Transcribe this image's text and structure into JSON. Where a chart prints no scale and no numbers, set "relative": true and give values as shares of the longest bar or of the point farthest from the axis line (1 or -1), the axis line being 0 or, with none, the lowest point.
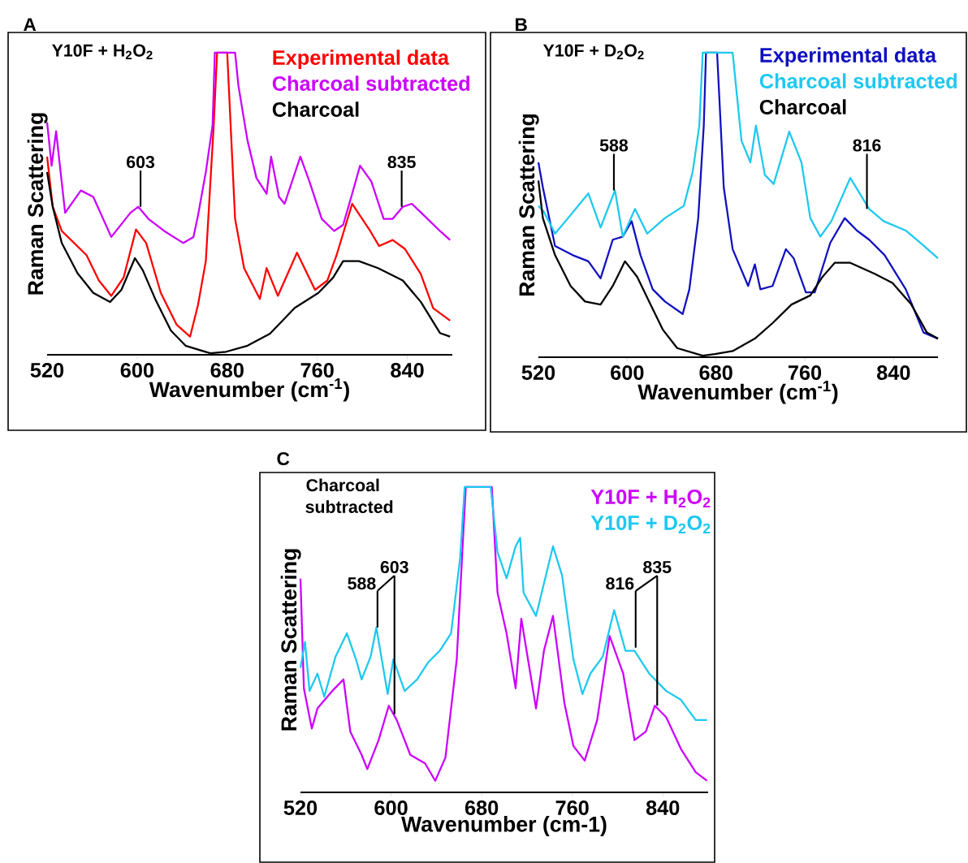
{
  "chart_data": [
    {
      "type": "line",
      "title": "Y10F + H$_{2}$O$_{2}$",
      "xlabel": "Wavenumber (cm$^{-1}$)",
      "ylabel": "Raman Scattering",
      "relative": true,
      "xlim": [
        520,
        880
      ],
      "xticks": [
        520,
        600,
        680,
        760,
        840
      ],
      "legend": "top right",
      "annotations": [
        "A",
        {
          "text": "603",
          "x": 603,
          "y": 0.49
        },
        {
          "text": "835",
          "x": 835,
          "y": 0.49
        }
      ],
      "series": [
        {
          "name": "Experimental data",
          "color": "#ff0000",
          "x": [
            520,
            525,
            533,
            544,
            555,
            566,
            577,
            588,
            599,
            608,
            621,
            635,
            647,
            654,
            661,
            668,
            671,
            680,
            687,
            695,
            709,
            715,
            725,
            742,
            758,
            769,
            777,
            791,
            807,
            815,
            827,
            838,
            852,
            863,
            878
          ],
          "values": [
            0.656,
            0.49,
            0.41,
            0.37,
            0.33,
            0.246,
            0.195,
            0.256,
            0.415,
            0.37,
            0.205,
            0.1,
            0.06,
            0.164,
            0.31,
            0.76,
            1.0,
            1.0,
            0.45,
            0.287,
            0.185,
            0.287,
            0.195,
            0.338,
            0.215,
            0.246,
            0.328,
            0.5,
            0.41,
            0.36,
            0.38,
            0.35,
            0.267,
            0.154,
            0.113
          ]
        },
        {
          "name": "Charcoal subtracted",
          "color": "#cc00ff",
          "x": [
            520,
            524,
            528,
            536,
            550,
            561,
            577,
            594,
            601,
            610,
            624,
            641,
            650,
            654,
            661,
            667,
            669,
            687,
            690,
            698,
            706,
            715,
            719,
            726,
            731,
            745,
            753,
            764,
            775,
            783,
            791,
            798,
            808,
            819,
            827,
            836,
            844,
            858,
            869,
            878
          ],
          "values": [
            0.77,
            0.626,
            0.74,
            0.47,
            0.544,
            0.523,
            0.39,
            0.47,
            0.49,
            0.45,
            0.41,
            0.37,
            0.39,
            0.46,
            0.605,
            0.76,
            1.0,
            1.0,
            0.89,
            0.71,
            0.585,
            0.533,
            0.656,
            0.523,
            0.5,
            0.656,
            0.574,
            0.45,
            0.41,
            0.43,
            0.533,
            0.626,
            0.574,
            0.45,
            0.45,
            0.49,
            0.5,
            0.45,
            0.41,
            0.38
          ]
        },
        {
          "name": "Charcoal",
          "color": "#000000",
          "x": [
            520,
            525,
            533,
            547,
            561,
            576,
            586,
            598,
            605,
            616,
            630,
            643,
            665,
            679,
            698,
            718,
            740,
            761,
            774,
            783,
            797,
            814,
            836,
            852,
            869,
            878
          ],
          "values": [
            0.605,
            0.49,
            0.37,
            0.27,
            0.205,
            0.175,
            0.215,
            0.32,
            0.28,
            0.185,
            0.08,
            0.03,
            0.005,
            0.01,
            0.03,
            0.07,
            0.155,
            0.205,
            0.255,
            0.31,
            0.31,
            0.287,
            0.246,
            0.175,
            0.072,
            0.06
          ]
        }
      ]
    },
    {
      "type": "line",
      "title": "Y10F + D$_{2}$O$_{2}$",
      "xlabel": "Wavenumber (cm$^{-1}$)",
      "ylabel": "Raman Scattering",
      "relative": true,
      "xlim": [
        520,
        880
      ],
      "xticks": [
        520,
        600,
        680,
        760,
        840
      ],
      "legend": "top right",
      "annotations": [
        "B",
        {
          "text": "588",
          "x": 588,
          "y": 0.548
        },
        {
          "text": "816",
          "x": 816,
          "y": 0.487
        }
      ],
      "series": [
        {
          "name": "Experimental data",
          "color": "#1010c0",
          "x": [
            520,
            524,
            535,
            551,
            565,
            576,
            587,
            596,
            604,
            612,
            623,
            634,
            650,
            656,
            664,
            669,
            671,
            681,
            687,
            695,
            709,
            715,
            720,
            731,
            743,
            750,
            761,
            769,
            783,
            796,
            807,
            818,
            832,
            851,
            867,
            880
          ],
          "values": [
            0.64,
            0.558,
            0.365,
            0.335,
            0.315,
            0.259,
            0.386,
            0.396,
            0.447,
            0.335,
            0.223,
            0.183,
            0.142,
            0.223,
            0.457,
            0.761,
            1.0,
            1.0,
            0.558,
            0.355,
            0.234,
            0.305,
            0.223,
            0.234,
            0.355,
            0.325,
            0.213,
            0.213,
            0.376,
            0.457,
            0.416,
            0.386,
            0.335,
            0.223,
            0.081,
            0.061
          ]
        },
        {
          "name": "Charcoal subtracted",
          "color": "#1ec8f0",
          "x": [
            520,
            525,
            535,
            549,
            565,
            576,
            589,
            596,
            607,
            618,
            634,
            651,
            659,
            665,
            668,
            695,
            703,
            711,
            716,
            724,
            732,
            746,
            757,
            765,
            774,
            784,
            801,
            818,
            831,
            851,
            864,
            880
          ],
          "values": [
            0.497,
            0.477,
            0.406,
            0.467,
            0.538,
            0.426,
            0.548,
            0.396,
            0.487,
            0.406,
            0.457,
            0.497,
            0.609,
            0.761,
            1.0,
            1.0,
            0.711,
            0.64,
            0.761,
            0.599,
            0.569,
            0.741,
            0.64,
            0.457,
            0.396,
            0.447,
            0.589,
            0.487,
            0.447,
            0.416,
            0.376,
            0.325
          ]
        },
        {
          "name": "Charcoal",
          "color": "#000000",
          "x": [
            520,
            524,
            535,
            549,
            562,
            576,
            587,
            598,
            609,
            621,
            632,
            645,
            668,
            679,
            695,
            715,
            731,
            748,
            765,
            776,
            787,
            801,
            823,
            839,
            856,
            870,
            880
          ],
          "values": [
            0.58,
            0.457,
            0.335,
            0.234,
            0.183,
            0.173,
            0.234,
            0.315,
            0.264,
            0.173,
            0.091,
            0.03,
            0.005,
            0.01,
            0.02,
            0.061,
            0.112,
            0.173,
            0.203,
            0.264,
            0.31,
            0.31,
            0.274,
            0.244,
            0.173,
            0.081,
            0.061
          ]
        }
      ]
    },
    {
      "type": "line",
      "title": "Charcoal subtracted",
      "xlabel": "Wavenumber (cm-1)",
      "ylabel": "Raman Scattering",
      "relative": true,
      "xlim": [
        520,
        880
      ],
      "xticks": [
        520,
        600,
        680,
        760,
        840
      ],
      "legend": "top right",
      "annotations": [
        "C",
        {
          "text": "588",
          "x": 588,
          "y": 0.54
        },
        {
          "text": "603",
          "x": 603,
          "y": 0.256
        },
        {
          "text": "816",
          "x": 816,
          "y": 0.474
        },
        {
          "text": "835",
          "x": 835,
          "y": 0.284
        }
      ],
      "series": [
        {
          "name": "Y10F + H$_{2}$O$_{2}$",
          "color": "#cc00ff",
          "x": [
            520,
            523,
            530,
            535,
            548,
            558,
            564,
            574,
            579,
            589,
            598,
            605,
            617,
            630,
            639,
            648,
            658,
            664,
            666,
            689,
            694,
            702,
            710,
            715,
            723,
            728,
            735,
            743,
            753,
            761,
            771,
            782,
            793,
            805,
            815,
            825,
            833,
            843,
            856,
            869,
            879
          ],
          "values": [
            0.7,
            0.341,
            0.209,
            0.275,
            0.332,
            0.37,
            0.199,
            0.123,
            0.076,
            0.171,
            0.284,
            0.237,
            0.123,
            0.095,
            0.038,
            0.114,
            0.436,
            0.863,
            1.0,
            1.0,
            0.654,
            0.521,
            0.341,
            0.569,
            0.389,
            0.275,
            0.464,
            0.578,
            0.294,
            0.152,
            0.104,
            0.237,
            0.512,
            0.389,
            0.171,
            0.199,
            0.284,
            0.246,
            0.142,
            0.066,
            0.038
          ]
        },
        {
          "name": "Y10F + D$_{2}$O$_{2}$",
          "color": "#1ec8f0",
          "x": [
            520,
            524,
            528,
            535,
            541,
            551,
            561,
            569,
            574,
            582,
            587,
            597,
            602,
            612,
            623,
            633,
            643,
            653,
            661,
            665,
            688,
            694,
            702,
            710,
            714,
            717,
            728,
            743,
            751,
            761,
            769,
            776,
            787,
            797,
            807,
            815,
            828,
            843,
            856,
            869,
            879
          ],
          "values": [
            0.408,
            0.493,
            0.332,
            0.389,
            0.313,
            0.445,
            0.521,
            0.436,
            0.37,
            0.445,
            0.54,
            0.322,
            0.436,
            0.332,
            0.37,
            0.427,
            0.464,
            0.521,
            0.768,
            1.0,
            1.0,
            0.787,
            0.701,
            0.806,
            0.834,
            0.654,
            0.578,
            0.806,
            0.711,
            0.436,
            0.322,
            0.389,
            0.445,
            0.597,
            0.464,
            0.464,
            0.389,
            0.332,
            0.303,
            0.237,
            0.237
          ]
        }
      ]
    }
  ]
}
